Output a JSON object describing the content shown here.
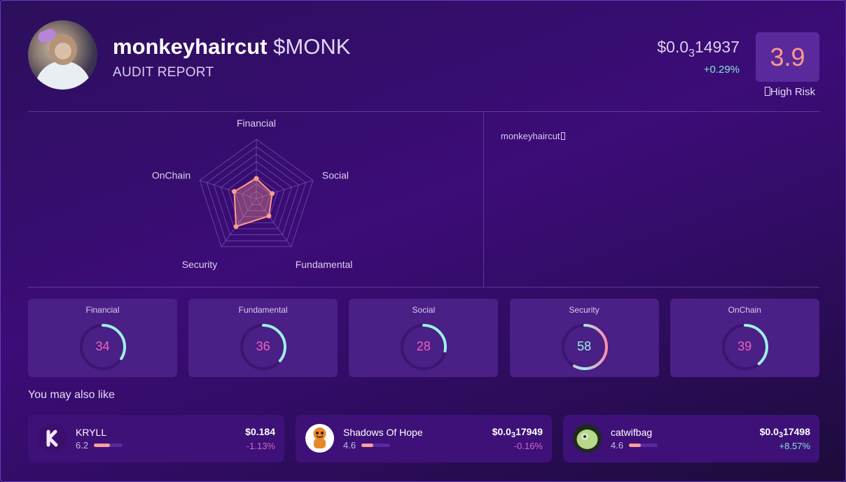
{
  "token": {
    "name": "monkeyhaircut",
    "symbol": "$MONK",
    "subtitle": "AUDIT REPORT",
    "price_prefix": "$0.0",
    "price_zeros": "3",
    "price_digits": "14937",
    "change": "+0.29%",
    "score": "3.9",
    "risk_label": "High Risk",
    "risk_icon": "warning-icon",
    "description": "monkeyhaircut"
  },
  "radar": {
    "labels": [
      "Financial",
      "Social",
      "Fundamental",
      "Security",
      "OnChain"
    ],
    "values": [
      34,
      28,
      36,
      58,
      39
    ],
    "max": 100,
    "colors": {
      "fill": "#ff9a88",
      "grid": "#6e4fa8"
    }
  },
  "scores": [
    {
      "label": "Financial",
      "value": 34
    },
    {
      "label": "Fundamental",
      "value": 36
    },
    {
      "label": "Social",
      "value": 28
    },
    {
      "label": "Security",
      "value": 58
    },
    {
      "label": "OnChain",
      "value": 39
    }
  ],
  "section_title": "You may also like",
  "recommendations": [
    {
      "name": "KRYLL",
      "score": "6.2",
      "score_value": 6.2,
      "price": "$0.184",
      "change": "-1.13%",
      "trend": "neg",
      "logo": "kryll-logo"
    },
    {
      "name": "Shadows Of Hope",
      "score": "4.6",
      "score_value": 4.6,
      "price_prefix": "$0.0",
      "price_zeros": "3",
      "price_digits": "17949",
      "change": "-0.16%",
      "trend": "neg",
      "logo": "orange-character-logo"
    },
    {
      "name": "catwifbag",
      "score": "4.6",
      "score_value": 4.6,
      "price_prefix": "$0.0",
      "price_zeros": "3",
      "price_digits": "17498",
      "change": "+8.57%",
      "trend": "pos",
      "logo": "cat-in-bag-logo"
    }
  ],
  "colors": {
    "accent": "#ff9a88",
    "positive": "#86e3d8",
    "negative": "#d864c8",
    "score_pink": "#f064b8"
  }
}
